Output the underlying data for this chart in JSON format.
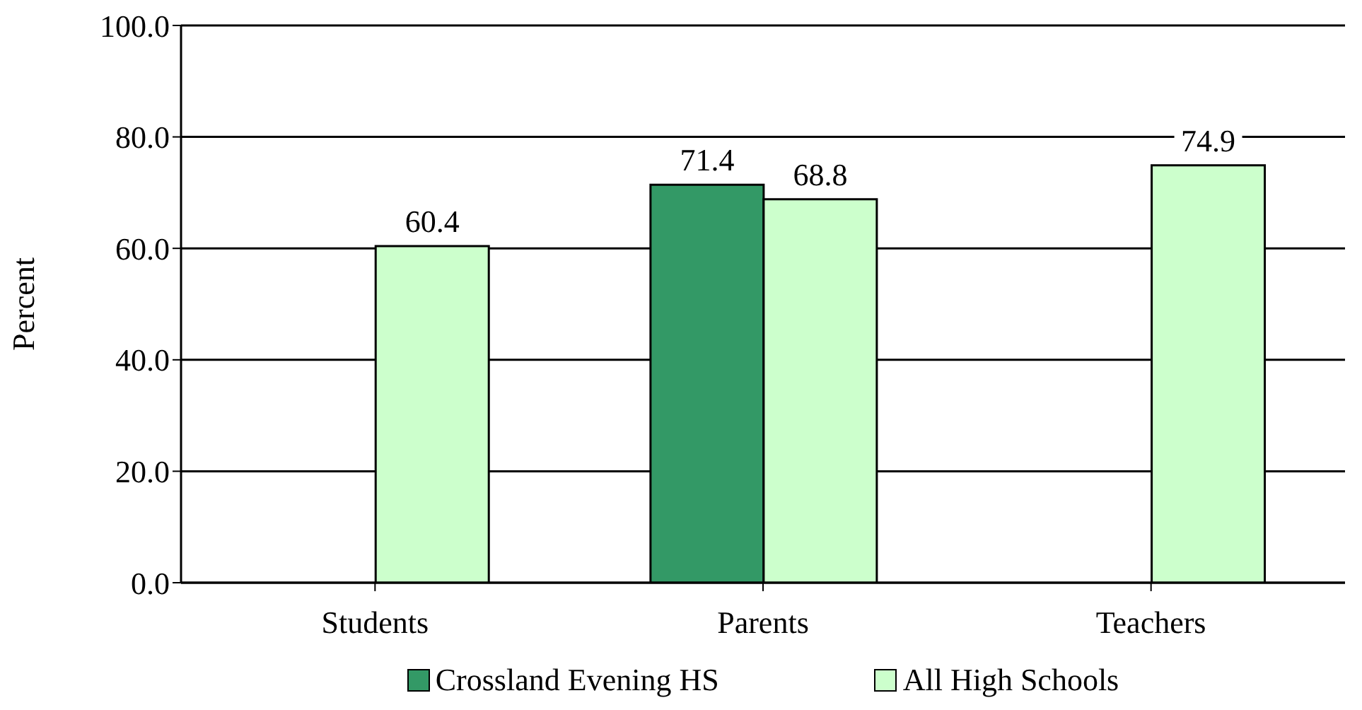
{
  "chart_data": {
    "type": "bar",
    "categories": [
      "Students",
      "Parents",
      "Teachers"
    ],
    "ylabel": "Percent",
    "series": [
      {
        "name": "Crossland Evening HS",
        "color": "#339966",
        "values": [
          null,
          71.4,
          null
        ]
      },
      {
        "name": "All High Schools",
        "color": "#ccffcc",
        "values": [
          60.4,
          68.8,
          74.9
        ]
      }
    ],
    "ylim": [
      0,
      100
    ],
    "yticks": [
      {
        "value": 0,
        "label": "0.0"
      },
      {
        "value": 20,
        "label": "20.0"
      },
      {
        "value": 40,
        "label": "40.0"
      },
      {
        "value": 60,
        "label": "60.0"
      },
      {
        "value": 80,
        "label": "80.0"
      },
      {
        "value": 100,
        "label": "100.0"
      }
    ],
    "grid": "y",
    "legend": "bottom",
    "data_labels": true
  }
}
